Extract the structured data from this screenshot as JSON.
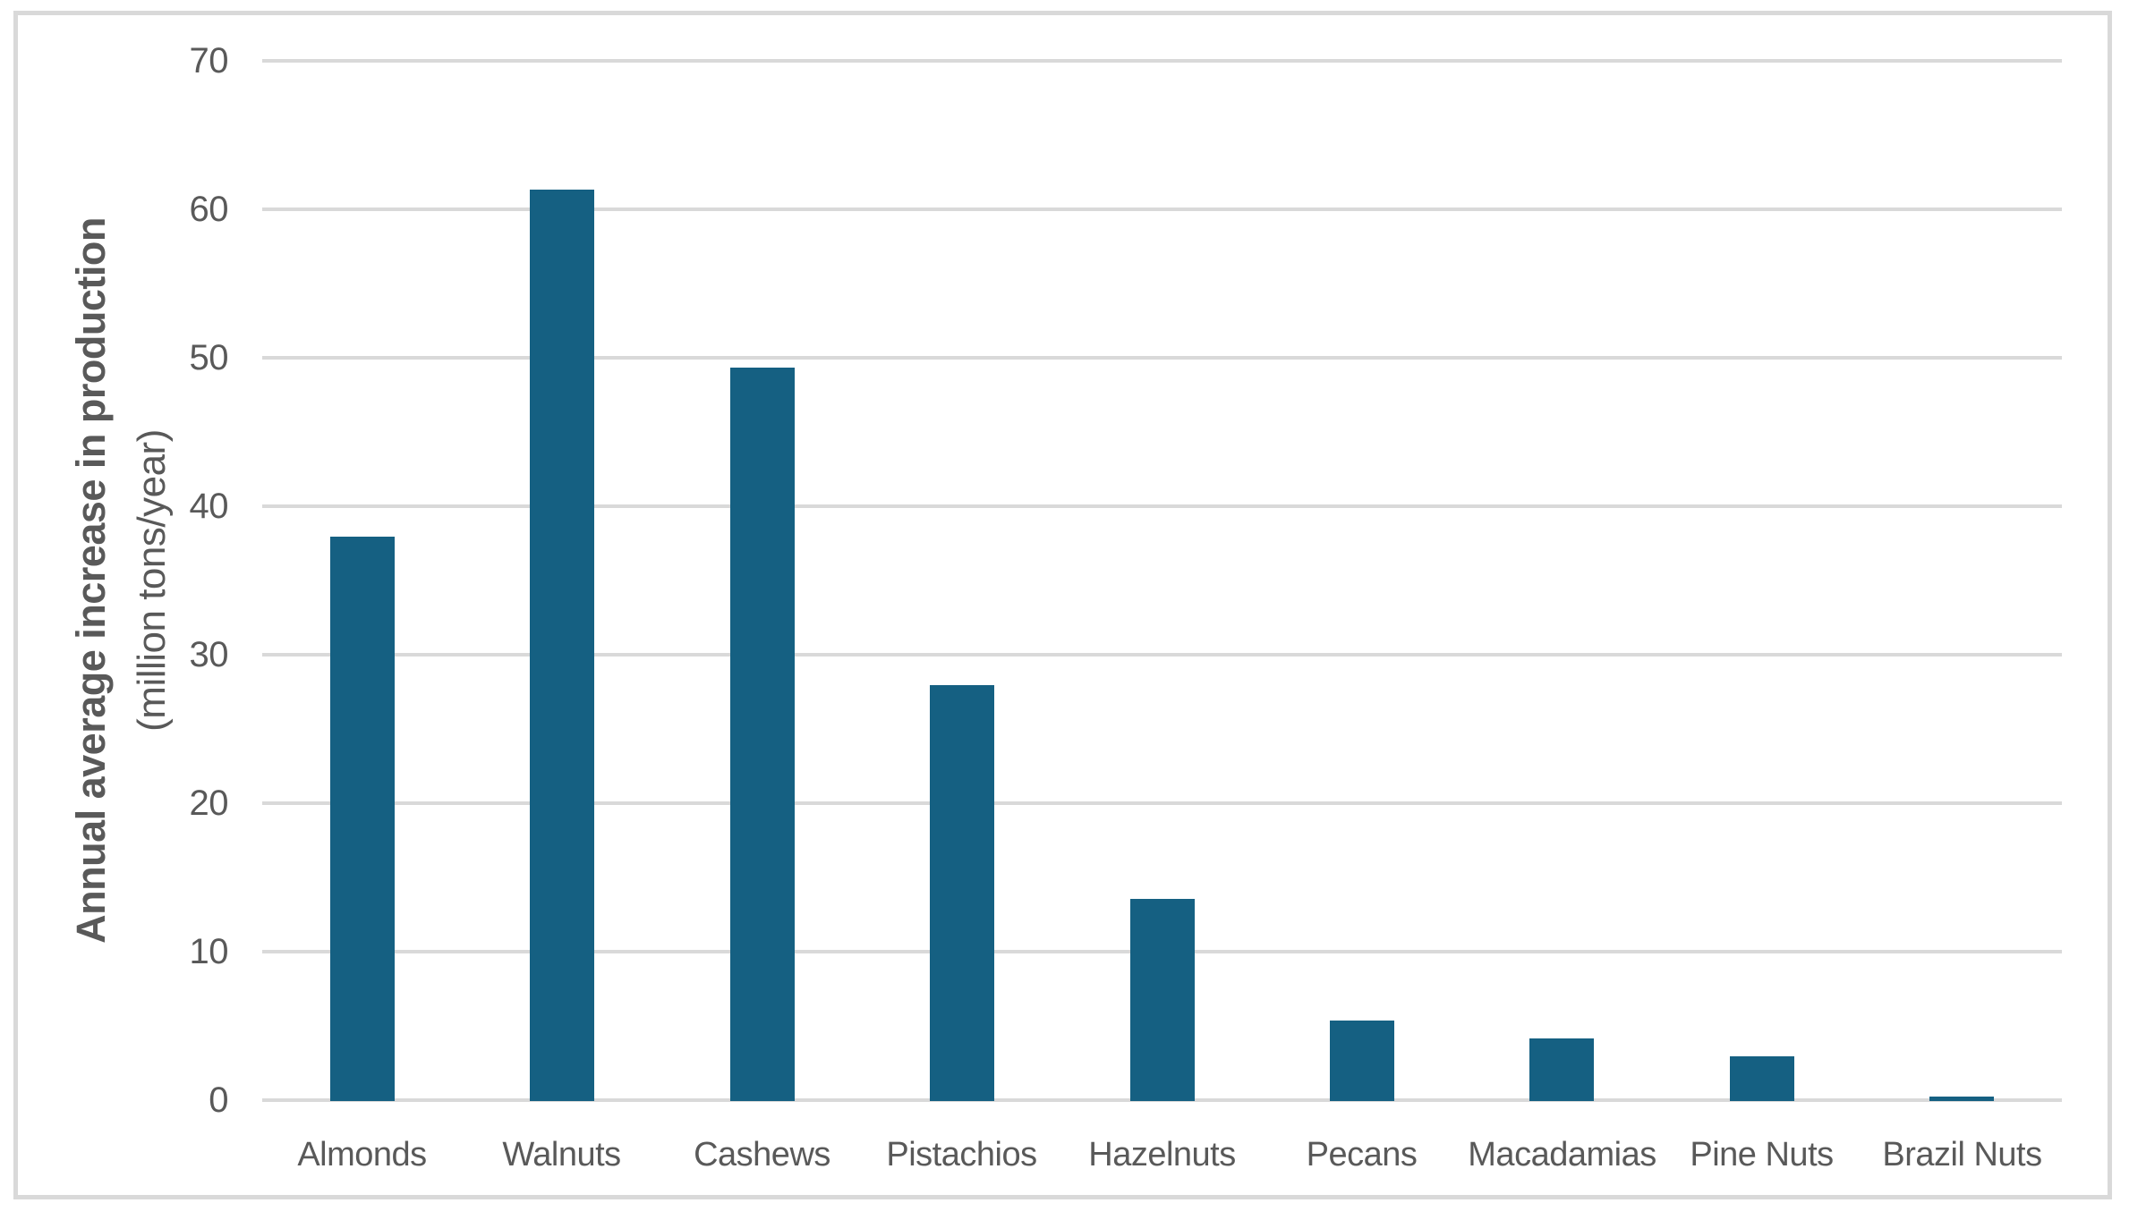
{
  "chart_data": {
    "type": "bar",
    "title": "",
    "xlabel": "",
    "ylabel_line1": "Annual average increase in production",
    "ylabel_line2": "(million tons/year)",
    "categories": [
      "Almonds",
      "Walnuts",
      "Cashews",
      "Pistachios",
      "Hazelnuts",
      "Pecans",
      "Macadamias",
      "Pine Nuts",
      "Brazil Nuts"
    ],
    "values": [
      38,
      61.4,
      49.4,
      28,
      13.6,
      5.4,
      4.2,
      3,
      0.3
    ],
    "yticks": [
      0,
      10,
      20,
      30,
      40,
      50,
      60,
      70
    ],
    "ylim": [
      0,
      70
    ],
    "grid": true,
    "legend": false,
    "bar_color": "#156082",
    "gridline_color": "#D9D9D9",
    "frame_color": "#D9D9D9",
    "text_color": "#595959",
    "background_color": "#FFFFFF"
  }
}
